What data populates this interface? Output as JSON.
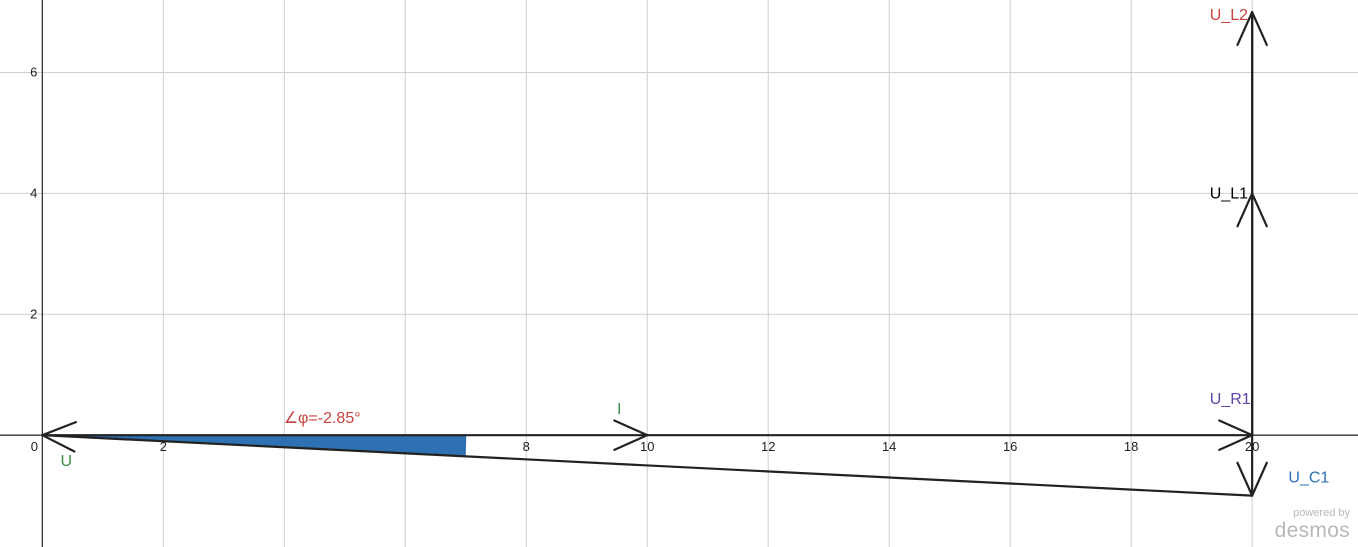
{
  "chart_data": {
    "type": "vector-diagram",
    "xlim": [
      -0.7,
      21.75
    ],
    "ylim": [
      -1.85,
      7.2
    ],
    "grid": true,
    "x_ticks": [
      0,
      2,
      4,
      6,
      8,
      10,
      12,
      14,
      16,
      18,
      20
    ],
    "x_tick_labels": [
      "0",
      "2",
      "",
      "",
      "8",
      "10",
      "12",
      "14",
      "16",
      "18",
      "20"
    ],
    "y_ticks": [
      2,
      4,
      6
    ],
    "y_tick_labels": [
      "2",
      "4",
      "6"
    ],
    "vectors": [
      {
        "name": "U",
        "from": [
          20,
          -1
        ],
        "to": [
          0,
          0
        ],
        "color": "#222222"
      },
      {
        "name": "I",
        "from": [
          0,
          0
        ],
        "to": [
          10,
          0
        ],
        "color": "#222222"
      },
      {
        "name": "U_R1",
        "from": [
          10,
          0
        ],
        "to": [
          20,
          0
        ],
        "color": "#222222"
      },
      {
        "name": "U_L1",
        "from": [
          20,
          0
        ],
        "to": [
          20,
          4
        ],
        "color": "#222222"
      },
      {
        "name": "U_L2",
        "from": [
          20,
          4
        ],
        "to": [
          20,
          7
        ],
        "color": "#222222"
      },
      {
        "name": "U_C1",
        "from": [
          20,
          7
        ],
        "to": [
          20,
          -1
        ],
        "color": "#222222"
      }
    ],
    "labels": [
      {
        "text": "U",
        "at": [
          0.3,
          -0.43
        ],
        "color": "#388c46"
      },
      {
        "text": "I",
        "at": [
          9.5,
          0.43
        ],
        "color": "#388c46"
      },
      {
        "text": "U_R1",
        "at": [
          19.3,
          0.6
        ],
        "color": "#6042a6"
      },
      {
        "text": "U_L1",
        "at": [
          19.3,
          4.0
        ],
        "color": "#000000"
      },
      {
        "text": "U_L2",
        "at": [
          19.3,
          6.95
        ],
        "color": "#c74440"
      },
      {
        "text": "U_C1",
        "at": [
          20.6,
          -0.7
        ],
        "color": "#2d70b3"
      }
    ],
    "angle": {
      "label": "∠φ=-2.85°",
      "value_deg": -2.85,
      "radius": 7,
      "color": "#c74440",
      "fill": "#2d70b3"
    }
  },
  "watermark": {
    "line1": "powered by",
    "line2": "desmos"
  }
}
